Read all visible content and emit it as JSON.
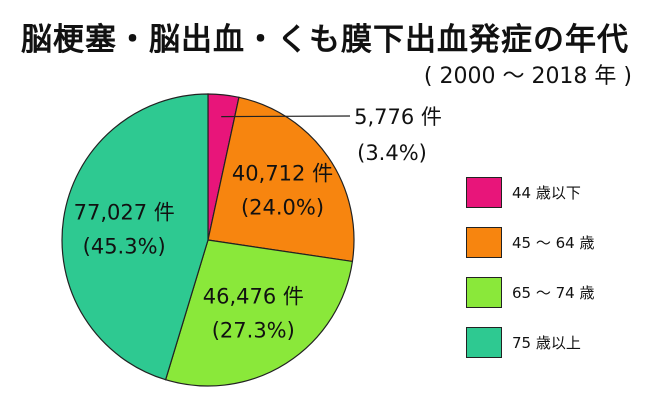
{
  "title": "脳梗塞・脳出血・くも膜下出血発症の年代",
  "subtitle": "( 2000 〜 2018 年 )",
  "chart_data": {
    "type": "pie",
    "unit": "件",
    "slices": [
      {
        "label": "44 歳以下",
        "count": 5776,
        "value_label": "5,776 件",
        "percent": 3.4,
        "percent_label": "(3.4%)",
        "color": "#e8157a"
      },
      {
        "label": "45 〜 64 歳",
        "count": 40712,
        "value_label": "40,712 件",
        "percent": 24.0,
        "percent_label": "(24.0%)",
        "color": "#f7850f"
      },
      {
        "label": "65 〜 74 歳",
        "count": 46476,
        "value_label": "46,476 件",
        "percent": 27.3,
        "percent_label": "(27.3%)",
        "color": "#8ae83a"
      },
      {
        "label": "75 歳以上",
        "count": 77027,
        "value_label": "77,027 件",
        "percent": 45.3,
        "percent_label": "(45.3%)",
        "color": "#2ec991"
      }
    ],
    "legend_position": "right"
  }
}
